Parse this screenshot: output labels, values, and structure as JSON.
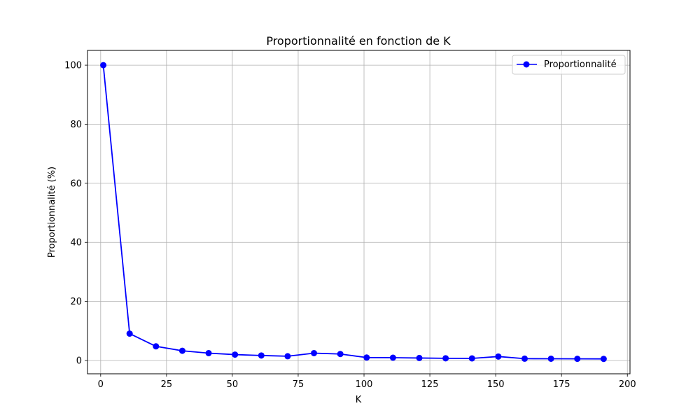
{
  "chart_data": {
    "type": "line",
    "title": "Proportionnalité en fonction de K",
    "xlabel": "K",
    "ylabel": "Proportionnalité (%)",
    "xlim": [
      -5,
      201
    ],
    "ylim": [
      -4.5,
      105
    ],
    "xticks": [
      0,
      25,
      50,
      75,
      100,
      125,
      150,
      175,
      200
    ],
    "yticks": [
      0,
      20,
      40,
      60,
      80,
      100
    ],
    "grid": true,
    "legend_position": "top-right",
    "series": [
      {
        "name": "Proportionnalité",
        "color": "#0000ff",
        "marker": "circle",
        "x": [
          1,
          11,
          21,
          31,
          41,
          51,
          61,
          71,
          81,
          91,
          101,
          111,
          121,
          131,
          141,
          151,
          161,
          171,
          181,
          191
        ],
        "y": [
          100,
          9.1,
          4.8,
          3.3,
          2.5,
          2.0,
          1.7,
          1.45,
          2.5,
          2.2,
          1.0,
          0.95,
          0.85,
          0.75,
          0.72,
          1.35,
          0.62,
          0.6,
          0.57,
          0.55
        ]
      }
    ]
  }
}
